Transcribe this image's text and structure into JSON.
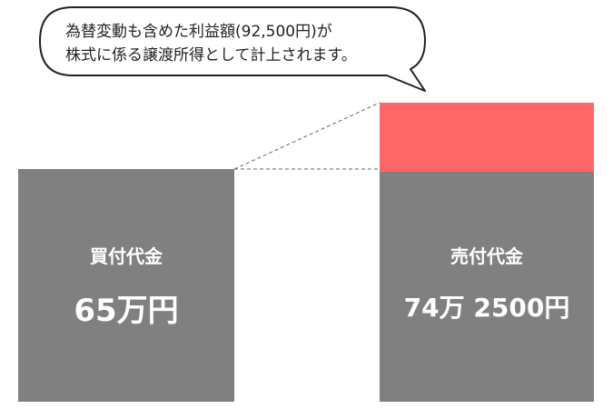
{
  "callout": {
    "line1": "為替変動も含めた利益額(92,500円)が",
    "line2": "株式に係る譲渡所得として計上されます。"
  },
  "bars": {
    "buy": {
      "label": "買付代金",
      "amount": "65万円"
    },
    "sell": {
      "label": "売付代金",
      "amount": "74万 2500円"
    }
  },
  "colors": {
    "bar": "#808080",
    "gain": "#ff6668",
    "outline": "#222222"
  }
}
